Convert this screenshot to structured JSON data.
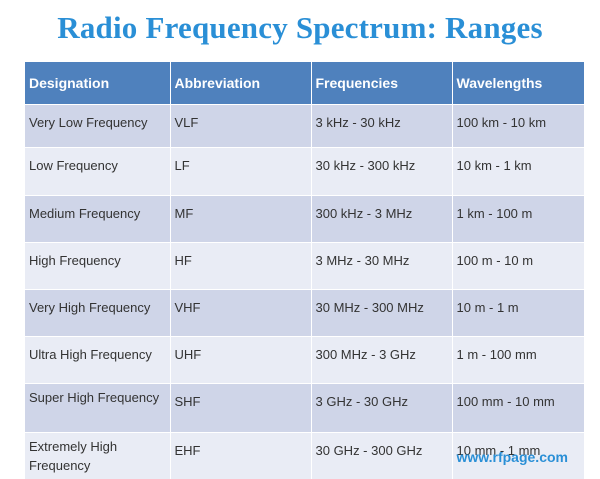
{
  "title": "Radio Frequency Spectrum: Ranges",
  "colors": {
    "title": "#2a8fd6",
    "header_bg": "#4f81bd",
    "row_odd": "#cfd5e8",
    "row_even": "#e9ecf5",
    "footer": "#2a8fd6"
  },
  "table": {
    "headers": [
      "Designation",
      "Abbreviation",
      "Frequencies",
      "Wavelengths"
    ],
    "rows": [
      [
        "Very Low Frequency",
        "VLF",
        "3 kHz - 30 kHz",
        "100 km - 10 km"
      ],
      [
        "Low Frequency",
        "LF",
        "30 kHz - 300 kHz",
        "10 km - 1 km"
      ],
      [
        "Medium Frequency",
        "MF",
        "300 kHz - 3 MHz",
        "1 km - 100 m"
      ],
      [
        "High Frequency",
        "HF",
        "3 MHz - 30 MHz",
        "100 m - 10 m"
      ],
      [
        "Very High Frequency",
        "VHF",
        "30 MHz - 300 MHz",
        "10 m - 1 m"
      ],
      [
        "Ultra High Frequency",
        "UHF",
        "300 MHz - 3 GHz",
        "1 m - 100 mm"
      ],
      [
        "Super High Frequency",
        "SHF",
        "3 GHz - 30 GHz",
        "100 mm - 10 mm"
      ],
      [
        "Extremely High Frequency",
        "EHF",
        "30 GHz - 300 GHz",
        "10 mm - 1 mm"
      ]
    ]
  },
  "footer": "www.rfpage.com"
}
